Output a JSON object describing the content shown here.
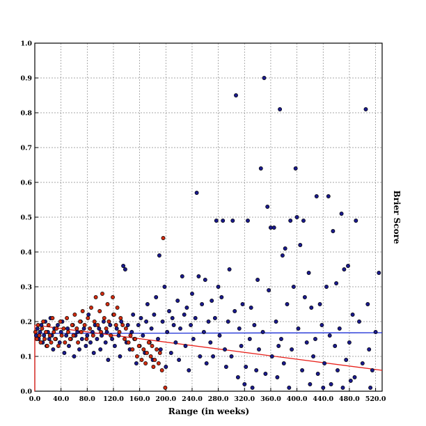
{
  "chart_data": {
    "type": "scatter",
    "title": "",
    "xlabel": "Range (in weeks)",
    "ylabel": "Brier Score",
    "xlim": [
      0,
      530
    ],
    "ylim": [
      0,
      1.0
    ],
    "grid": true,
    "xticks": [
      0,
      40,
      80,
      120,
      160,
      200,
      240,
      280,
      320,
      360,
      400,
      440,
      480,
      520
    ],
    "xtick_labels": [
      "0.0",
      "40.0",
      "80.0",
      "120.0",
      "160.0",
      "200.0",
      "240.0",
      "280.0",
      "320.0",
      "360.0",
      "400.0",
      "440.0",
      "480.0",
      "520.0"
    ],
    "yticks": [
      0,
      0.1,
      0.2,
      0.3,
      0.4,
      0.5,
      0.6,
      0.7,
      0.8,
      0.9,
      1.0
    ],
    "ytick_labels": [
      "0.0",
      "0.1",
      "0.2",
      "0.3",
      "0.4",
      "0.5",
      "0.6",
      "0.7",
      "0.8",
      "0.9",
      "1.0"
    ],
    "series": [
      {
        "color": "#1a1a8c",
        "points": [
          [
            2,
            0.16
          ],
          [
            4,
            0.18
          ],
          [
            6,
            0.15
          ],
          [
            8,
            0.17
          ],
          [
            10,
            0.19
          ],
          [
            12,
            0.14
          ],
          [
            14,
            0.16
          ],
          [
            16,
            0.2
          ],
          [
            18,
            0.13
          ],
          [
            20,
            0.17
          ],
          [
            22,
            0.15
          ],
          [
            24,
            0.21
          ],
          [
            26,
            0.16
          ],
          [
            28,
            0.12
          ],
          [
            30,
            0.18
          ],
          [
            32,
            0.15
          ],
          [
            35,
            0.19
          ],
          [
            38,
            0.14
          ],
          [
            40,
            0.17
          ],
          [
            42,
            0.2
          ],
          [
            45,
            0.11
          ],
          [
            48,
            0.16
          ],
          [
            50,
            0.18
          ],
          [
            52,
            0.13
          ],
          [
            55,
            0.15
          ],
          [
            58,
            0.19
          ],
          [
            60,
            0.1
          ],
          [
            62,
            0.16
          ],
          [
            65,
            0.17
          ],
          [
            68,
            0.12
          ],
          [
            70,
            0.2
          ],
          [
            72,
            0.15
          ],
          [
            75,
            0.18
          ],
          [
            78,
            0.13
          ],
          [
            80,
            0.16
          ],
          [
            82,
            0.22
          ],
          [
            85,
            0.14
          ],
          [
            88,
            0.17
          ],
          [
            90,
            0.11
          ],
          [
            92,
            0.19
          ],
          [
            95,
            0.15
          ],
          [
            98,
            0.18
          ],
          [
            100,
            0.12
          ],
          [
            102,
            0.16
          ],
          [
            105,
            0.2
          ],
          [
            108,
            0.14
          ],
          [
            110,
            0.17
          ],
          [
            112,
            0.09
          ],
          [
            115,
            0.19
          ],
          [
            118,
            0.15
          ],
          [
            120,
            0.22
          ],
          [
            122,
            0.13
          ],
          [
            125,
            0.18
          ],
          [
            128,
            0.16
          ],
          [
            130,
            0.1
          ],
          [
            132,
            0.2
          ],
          [
            135,
            0.36
          ],
          [
            138,
            0.35
          ],
          [
            140,
            0.14
          ],
          [
            142,
            0.19
          ],
          [
            145,
            0.12
          ],
          [
            148,
            0.17
          ],
          [
            150,
            0.22
          ],
          [
            152,
            0.15
          ],
          [
            155,
            0.08
          ],
          [
            158,
            0.19
          ],
          [
            160,
            0.13
          ],
          [
            162,
            0.21
          ],
          [
            165,
            0.16
          ],
          [
            168,
            0.11
          ],
          [
            170,
            0.2
          ],
          [
            172,
            0.25
          ],
          [
            175,
            0.14
          ],
          [
            178,
            0.18
          ],
          [
            180,
            0.09
          ],
          [
            182,
            0.22
          ],
          [
            185,
            0.27
          ],
          [
            188,
            0.15
          ],
          [
            190,
            0.39
          ],
          [
            192,
            0.12
          ],
          [
            195,
            0.2
          ],
          [
            198,
            0.3
          ],
          [
            200,
            0.07
          ],
          [
            202,
            0.17
          ],
          [
            205,
            0.23
          ],
          [
            208,
            0.11
          ],
          [
            210,
            0.21
          ],
          [
            212,
            0.19
          ],
          [
            215,
            0.14
          ],
          [
            218,
            0.26
          ],
          [
            220,
            0.09
          ],
          [
            222,
            0.18
          ],
          [
            225,
            0.33
          ],
          [
            228,
            0.22
          ],
          [
            230,
            0.13
          ],
          [
            232,
            0.24
          ],
          [
            235,
            0.06
          ],
          [
            238,
            0.19
          ],
          [
            240,
            0.28
          ],
          [
            242,
            0.15
          ],
          [
            245,
            0.21
          ],
          [
            247,
            0.57
          ],
          [
            250,
            0.33
          ],
          [
            252,
            0.1
          ],
          [
            255,
            0.25
          ],
          [
            258,
            0.17
          ],
          [
            260,
            0.32
          ],
          [
            262,
            0.08
          ],
          [
            265,
            0.2
          ],
          [
            268,
            0.14
          ],
          [
            270,
            0.26
          ],
          [
            272,
            0.1
          ],
          [
            275,
            0.21
          ],
          [
            277,
            0.49
          ],
          [
            280,
            0.3
          ],
          [
            282,
            0.16
          ],
          [
            285,
            0.27
          ],
          [
            287,
            0.49
          ],
          [
            290,
            0.12
          ],
          [
            292,
            0.07
          ],
          [
            295,
            0.2
          ],
          [
            297,
            0.35
          ],
          [
            300,
            0.1
          ],
          [
            302,
            0.49
          ],
          [
            305,
            0.23
          ],
          [
            307,
            0.85
          ],
          [
            310,
            0.04
          ],
          [
            312,
            0.18
          ],
          [
            315,
            0.13
          ],
          [
            317,
            0.25
          ],
          [
            320,
            0.02
          ],
          [
            322,
            0.07
          ],
          [
            325,
            0.49
          ],
          [
            328,
            0.15
          ],
          [
            330,
            0.24
          ],
          [
            332,
            0.01
          ],
          [
            335,
            0.19
          ],
          [
            338,
            0.06
          ],
          [
            340,
            0.32
          ],
          [
            342,
            0.12
          ],
          [
            345,
            0.64
          ],
          [
            348,
            0.17
          ],
          [
            350,
            0.9
          ],
          [
            352,
            0.05
          ],
          [
            355,
            0.53
          ],
          [
            357,
            0.29
          ],
          [
            360,
            0.47
          ],
          [
            362,
            0.1
          ],
          [
            365,
            0.47
          ],
          [
            368,
            0.2
          ],
          [
            370,
            0.04
          ],
          [
            372,
            0.13
          ],
          [
            374,
            0.81
          ],
          [
            376,
            0.15
          ],
          [
            378,
            0.39
          ],
          [
            380,
            0.08
          ],
          [
            382,
            0.41
          ],
          [
            385,
            0.25
          ],
          [
            388,
            0.01
          ],
          [
            390,
            0.49
          ],
          [
            392,
            0.12
          ],
          [
            395,
            0.3
          ],
          [
            398,
            0.64
          ],
          [
            400,
            0.5
          ],
          [
            402,
            0.18
          ],
          [
            405,
            0.42
          ],
          [
            408,
            0.06
          ],
          [
            410,
            0.49
          ],
          [
            412,
            0.27
          ],
          [
            415,
            0.14
          ],
          [
            418,
            0.34
          ],
          [
            420,
            0.02
          ],
          [
            422,
            0.24
          ],
          [
            425,
            0.1
          ],
          [
            428,
            0.15
          ],
          [
            430,
            0.56
          ],
          [
            432,
            0.05
          ],
          [
            435,
            0.25
          ],
          [
            438,
            0.19
          ],
          [
            440,
            0.01
          ],
          [
            442,
            0.08
          ],
          [
            445,
            0.3
          ],
          [
            448,
            0.56
          ],
          [
            450,
            0.16
          ],
          [
            452,
            0.02
          ],
          [
            455,
            0.46
          ],
          [
            458,
            0.13
          ],
          [
            460,
            0.31
          ],
          [
            462,
            0.06
          ],
          [
            465,
            0.18
          ],
          [
            468,
            0.51
          ],
          [
            470,
            0.01
          ],
          [
            472,
            0.35
          ],
          [
            475,
            0.09
          ],
          [
            478,
            0.36
          ],
          [
            480,
            0.14
          ],
          [
            482,
            0.03
          ],
          [
            485,
            0.22
          ],
          [
            488,
            0.04
          ],
          [
            490,
            0.49
          ],
          [
            495,
            0.2
          ],
          [
            500,
            0.08
          ],
          [
            505,
            0.81
          ],
          [
            508,
            0.25
          ],
          [
            510,
            0.12
          ],
          [
            512,
            0.01
          ],
          [
            515,
            0.06
          ],
          [
            520,
            0.17
          ],
          [
            525,
            0.34
          ]
        ],
        "trend": [
          [
            0,
            0.166
          ],
          [
            530,
            0.168
          ]
        ]
      },
      {
        "color": "#d02b10",
        "points": [
          [
            1,
            0.17
          ],
          [
            3,
            0.15
          ],
          [
            5,
            0.19
          ],
          [
            7,
            0.16
          ],
          [
            9,
            0.14
          ],
          [
            11,
            0.18
          ],
          [
            13,
            0.2
          ],
          [
            15,
            0.15
          ],
          [
            17,
            0.17
          ],
          [
            19,
            0.13
          ],
          [
            21,
            0.19
          ],
          [
            23,
            0.16
          ],
          [
            25,
            0.14
          ],
          [
            27,
            0.21
          ],
          [
            29,
            0.17
          ],
          [
            31,
            0.15
          ],
          [
            33,
            0.18
          ],
          [
            36,
            0.13
          ],
          [
            39,
            0.2
          ],
          [
            41,
            0.16
          ],
          [
            44,
            0.18
          ],
          [
            46,
            0.14
          ],
          [
            49,
            0.21
          ],
          [
            51,
            0.17
          ],
          [
            54,
            0.15
          ],
          [
            57,
            0.19
          ],
          [
            59,
            0.16
          ],
          [
            61,
            0.22
          ],
          [
            64,
            0.18
          ],
          [
            66,
            0.14
          ],
          [
            69,
            0.2
          ],
          [
            71,
            0.17
          ],
          [
            73,
            0.23
          ],
          [
            76,
            0.19
          ],
          [
            79,
            0.15
          ],
          [
            81,
            0.21
          ],
          [
            84,
            0.18
          ],
          [
            86,
            0.24
          ],
          [
            89,
            0.16
          ],
          [
            91,
            0.2
          ],
          [
            93,
            0.27
          ],
          [
            96,
            0.19
          ],
          [
            99,
            0.23
          ],
          [
            101,
            0.17
          ],
          [
            103,
            0.28
          ],
          [
            106,
            0.21
          ],
          [
            109,
            0.18
          ],
          [
            111,
            0.25
          ],
          [
            113,
            0.2
          ],
          [
            116,
            0.16
          ],
          [
            119,
            0.27
          ],
          [
            121,
            0.22
          ],
          [
            124,
            0.19
          ],
          [
            126,
            0.24
          ],
          [
            129,
            0.17
          ],
          [
            131,
            0.21
          ],
          [
            134,
            0.19
          ],
          [
            137,
            0.15
          ],
          [
            139,
            0.18
          ],
          [
            143,
            0.14
          ],
          [
            146,
            0.16
          ],
          [
            149,
            0.12
          ],
          [
            153,
            0.15
          ],
          [
            156,
            0.1
          ],
          [
            159,
            0.13
          ],
          [
            163,
            0.09
          ],
          [
            166,
            0.12
          ],
          [
            169,
            0.08
          ],
          [
            171,
            0.11
          ],
          [
            174,
            0.14
          ],
          [
            177,
            0.1
          ],
          [
            179,
            0.13
          ],
          [
            181,
            0.07
          ],
          [
            183,
            0.09
          ],
          [
            186,
            0.12
          ],
          [
            189,
            0.08
          ],
          [
            191,
            0.11
          ],
          [
            194,
            0.06
          ],
          [
            196,
            0.44
          ],
          [
            199,
            0.01
          ]
        ],
        "trend": [
          [
            0,
            0.19
          ],
          [
            530,
            0.06
          ]
        ]
      }
    ]
  }
}
